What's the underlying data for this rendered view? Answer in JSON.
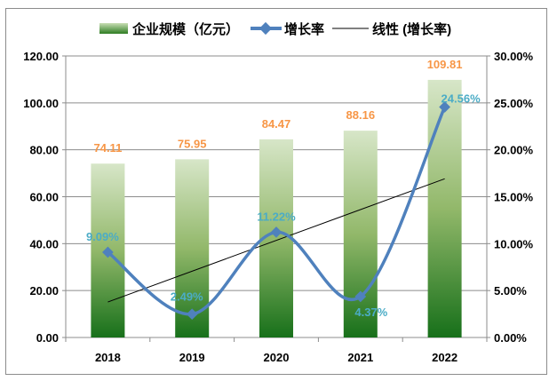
{
  "chart_data": {
    "type": "bar+line",
    "categories": [
      "2018",
      "2019",
      "2020",
      "2021",
      "2022"
    ],
    "series": [
      {
        "name": "企业规模（亿元）",
        "type": "bar",
        "axis": "left",
        "values": [
          74.11,
          75.95,
          84.47,
          88.16,
          109.81
        ],
        "labels": [
          "74.11",
          "75.95",
          "84.47",
          "88.16",
          "109.81"
        ]
      },
      {
        "name": "增长率",
        "type": "line-smooth",
        "axis": "right",
        "values": [
          9.09,
          2.49,
          11.22,
          4.37,
          24.56
        ],
        "labels": [
          "9.09%",
          "2.49%",
          "11.22%",
          "4.37%",
          "24.56%"
        ]
      },
      {
        "name": "线性 (增长率)",
        "type": "trendline-linear",
        "axis": "right"
      }
    ],
    "left_axis": {
      "range": [
        0,
        120
      ],
      "ticks": [
        "0.00",
        "20.00",
        "40.00",
        "60.00",
        "80.00",
        "100.00",
        "120.00"
      ]
    },
    "right_axis": {
      "range": [
        0,
        30
      ],
      "ticks": [
        "0.00%",
        "5.00%",
        "10.00%",
        "15.00%",
        "20.00%",
        "25.00%",
        "30.00%"
      ]
    },
    "grid": "horizontal",
    "legend": "top",
    "colors": {
      "bar_top": "#d7e6c8",
      "bar_bottom": "#17701a",
      "line": "#4f81bd",
      "trend": "#000000",
      "bar_label": "#f79646",
      "line_label": "#4bacc6"
    }
  }
}
